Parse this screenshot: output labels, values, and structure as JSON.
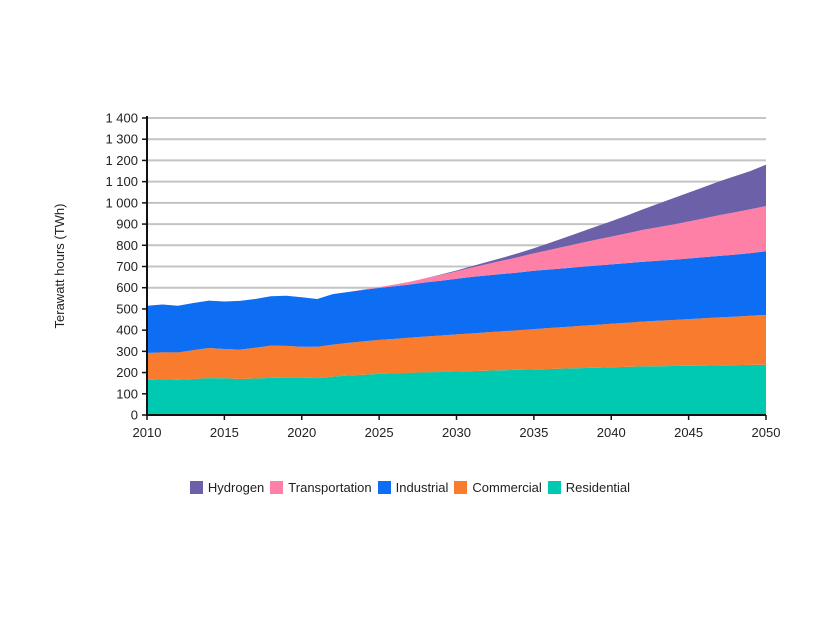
{
  "chart_data": {
    "type": "area",
    "stacked": true,
    "ylabel": "Terawatt hours (TWh)",
    "xlabel": "",
    "xlim": [
      2010,
      2050
    ],
    "ylim": [
      0,
      1400
    ],
    "x_ticks": [
      2010,
      2015,
      2020,
      2025,
      2030,
      2035,
      2040,
      2045,
      2050
    ],
    "x_tick_labels": [
      "2010",
      "2015",
      "2020",
      "2025",
      "2030",
      "2035",
      "2040",
      "2045",
      "2050"
    ],
    "y_ticks": [
      0,
      100,
      200,
      300,
      400,
      500,
      600,
      700,
      800,
      900,
      1000,
      1100,
      1200,
      1300,
      1400
    ],
    "y_tick_labels": [
      "0",
      "100",
      "200",
      "300",
      "400",
      "500",
      "600",
      "700",
      "800",
      "900",
      "1 000",
      "1 100",
      "1 200",
      "1 300",
      "1 400"
    ],
    "grid": "horizontal",
    "legend_position": "bottom",
    "x": [
      2010,
      2011,
      2012,
      2013,
      2014,
      2015,
      2016,
      2017,
      2018,
      2019,
      2020,
      2021,
      2022,
      2023,
      2024,
      2025,
      2026,
      2027,
      2028,
      2029,
      2030,
      2031,
      2032,
      2033,
      2034,
      2035,
      2036,
      2037,
      2038,
      2039,
      2040,
      2041,
      2042,
      2043,
      2044,
      2045,
      2046,
      2047,
      2048,
      2049,
      2050
    ],
    "series": [
      {
        "name": "Residential",
        "color": "#00c9b1",
        "values": [
          165,
          168,
          166,
          170,
          174,
          173,
          170,
          172,
          175,
          176,
          176,
          174,
          181,
          186,
          190,
          194,
          196,
          199,
          201,
          203,
          205,
          207,
          209,
          211,
          213,
          215,
          217,
          219,
          221,
          223,
          225,
          227,
          229,
          230,
          231,
          232,
          233,
          234,
          235,
          236,
          237
        ]
      },
      {
        "name": "Commercial",
        "color": "#f97b2d",
        "values": [
          127,
          128,
          129,
          136,
          142,
          138,
          138,
          145,
          152,
          150,
          146,
          148,
          151,
          154,
          157,
          160,
          163,
          166,
          169,
          172,
          175,
          178,
          181,
          184,
          187,
          190,
          193,
          196,
          199,
          202,
          205,
          208,
          211,
          214,
          217,
          220,
          223,
          226,
          229,
          232,
          235
        ]
      },
      {
        "name": "Industrial",
        "color": "#0d6ef4",
        "values": [
          223,
          225,
          220,
          222,
          223,
          224,
          230,
          230,
          233,
          236,
          233,
          225,
          238,
          240,
          243,
          245,
          248,
          250,
          255,
          258,
          262,
          266,
          268,
          270,
          272,
          275,
          276,
          277,
          278,
          279,
          280,
          281,
          282,
          283,
          284,
          286,
          288,
          290,
          292,
          295,
          300
        ]
      },
      {
        "name": "Transportation",
        "color": "#ff80a6",
        "values": [
          0,
          0,
          0,
          0,
          0,
          0,
          0,
          0,
          0,
          0,
          0,
          0,
          0,
          0,
          2,
          4,
          8,
          13,
          20,
          27,
          35,
          44,
          54,
          63,
          72,
          82,
          92,
          102,
          112,
          122,
          131,
          140,
          150,
          158,
          166,
          174,
          183,
          192,
          200,
          207,
          213
        ]
      },
      {
        "name": "Hydrogen",
        "color": "#6c60a8",
        "values": [
          0,
          0,
          0,
          0,
          0,
          0,
          0,
          0,
          0,
          0,
          0,
          0,
          0,
          0,
          0,
          0,
          0,
          0,
          0,
          2,
          4,
          7,
          10,
          14,
          19,
          24,
          33,
          42,
          52,
          62,
          72,
          84,
          96,
          110,
          124,
          136,
          148,
          160,
          170,
          180,
          195
        ]
      }
    ],
    "legend_order": [
      "Hydrogen",
      "Transportation",
      "Industrial",
      "Commercial",
      "Residential"
    ]
  }
}
